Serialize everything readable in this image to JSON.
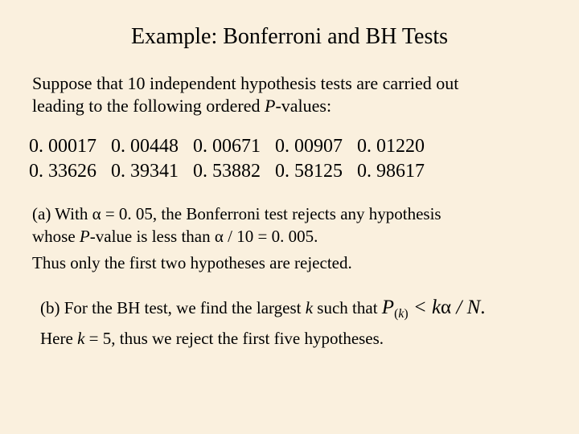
{
  "title": "Example: Bonferroni and BH Tests",
  "intro_1": "Suppose that 10 independent hypothesis tests are carried out",
  "intro_2a": "leading to the following ordered ",
  "intro_2b": "P",
  "intro_2c": "-values:",
  "pvals": {
    "r1": [
      "0. 00017",
      "0. 00448",
      "0. 00671",
      "0. 00907",
      "0. 01220"
    ],
    "r2": [
      "0. 33626",
      "0. 39341",
      "0. 53882",
      "0. 58125",
      "0. 98617"
    ]
  },
  "a1a": "(a) With ",
  "alpha": "α",
  "a1b": " = 0. 05, the Bonferroni test rejects any hypothesis",
  "a2a": "whose ",
  "a2b": "P",
  "a2c": "-value is less than ",
  "a2d": " / 10 = 0. 005.",
  "a3": "Thus only the first two hypotheses are rejected.",
  "b1a": "(b) For the BH test, we find the largest ",
  "k": "k",
  "b1b": " such that ",
  "P": "P",
  "paren_o": "(",
  "paren_c": ")",
  "b1c": " < ",
  "b1d": " / ",
  "N": "N",
  "period": ".",
  "b2a": "Here ",
  "b2b": " = 5, thus we reject the first five hypotheses."
}
